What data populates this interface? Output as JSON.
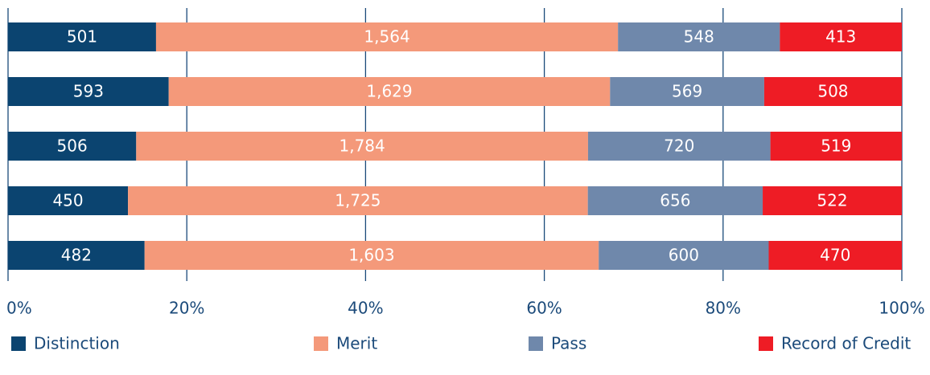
{
  "chart_data": {
    "type": "bar",
    "orientation": "horizontal",
    "stacking": "percent",
    "categories": [
      null,
      null,
      null,
      null,
      null
    ],
    "series": [
      {
        "name": "Distinction",
        "color": "#0b4470",
        "values": [
          501,
          593,
          506,
          450,
          482
        ]
      },
      {
        "name": "Merit",
        "color": "#f4997a",
        "values": [
          1564,
          1629,
          1784,
          1725,
          1603
        ],
        "value_labels": [
          "1,564",
          "1,629",
          "1,784",
          "1,725",
          "1,603"
        ]
      },
      {
        "name": "Pass",
        "color": "#6f88ab",
        "values": [
          548,
          569,
          720,
          656,
          600
        ]
      },
      {
        "name": "Record of Credit",
        "color": "#ee1c25",
        "values": [
          413,
          508,
          519,
          522,
          470
        ]
      }
    ],
    "xlim": [
      0,
      100
    ],
    "xticks": [
      {
        "value": 0,
        "label": "0%"
      },
      {
        "value": 20,
        "label": "20%"
      },
      {
        "value": 40,
        "label": "40%"
      },
      {
        "value": 60,
        "label": "60%"
      },
      {
        "value": 80,
        "label": "80%"
      },
      {
        "value": 100,
        "label": "100%"
      }
    ],
    "grid": true,
    "legend": "bottom"
  }
}
